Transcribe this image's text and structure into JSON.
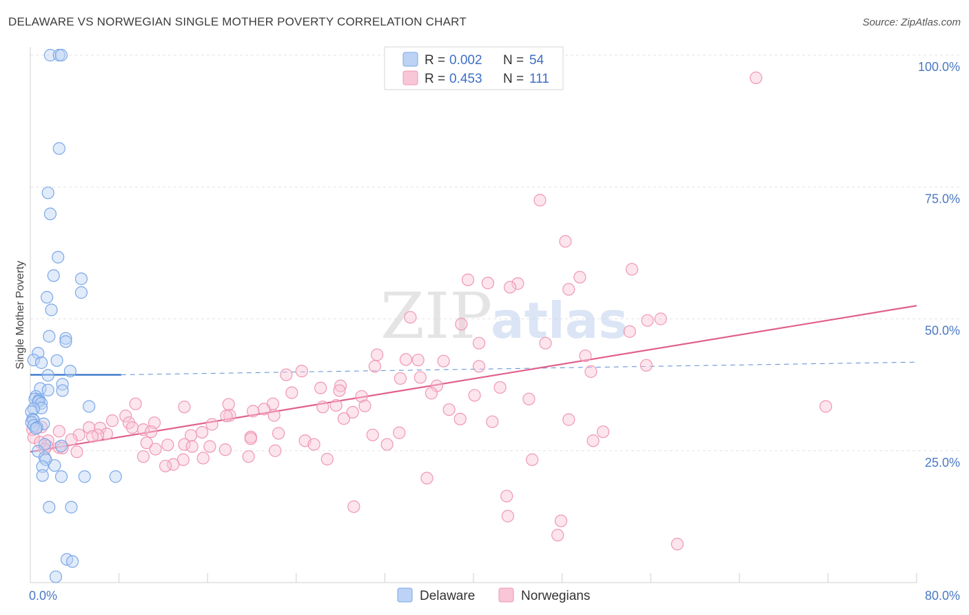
{
  "title": "DELAWARE VS NORWEGIAN SINGLE MOTHER POVERTY CORRELATION CHART",
  "source": "Source: ZipAtlas.com",
  "watermark": {
    "zip": "ZIP",
    "atlas": "atlas"
  },
  "colors": {
    "delaware": "#7aa7e8",
    "delaware_fill": "#bcd3f5",
    "delaware_line": "#2f6fc7",
    "norwegians": "#ef97b3",
    "norwegians_fill": "#f8c6d6",
    "norwegians_line": "#e0608b",
    "grid": "#e3e3e3",
    "axis_text": "#4a78c2"
  },
  "legend": {
    "rows": [
      {
        "r_label": "R = ",
        "r_value": "0.002",
        "n_label": "N = ",
        "n_value": "54"
      },
      {
        "r_label": "R = ",
        "r_value": "0.453",
        "n_label": "N = ",
        "n_value": "111"
      }
    ]
  },
  "chart_data": {
    "type": "scatter",
    "title": "DELAWARE VS NORWEGIAN SINGLE MOTHER POVERTY CORRELATION CHART",
    "xlabel": "",
    "ylabel": "Single Mother Poverty",
    "xlim": [
      0,
      80
    ],
    "ylim": [
      0,
      100
    ],
    "x_ticks": [
      0,
      8,
      16,
      24,
      32,
      40,
      48,
      56,
      64,
      72,
      80
    ],
    "x_tick_labels": [
      {
        "value": 0,
        "label": "0.0%"
      },
      {
        "value": 80,
        "label": "80.0%"
      }
    ],
    "y_ticks": [
      {
        "value": 25,
        "label": "25.0%"
      },
      {
        "value": 50,
        "label": "50.0%"
      },
      {
        "value": 75,
        "label": "75.0%"
      },
      {
        "value": 100,
        "label": "100.0%"
      }
    ],
    "grid": true,
    "legend_position": "top-center",
    "series": [
      {
        "name": "Delaware",
        "r": 0.002,
        "n": 54,
        "trend": {
          "x": [
            0,
            8.2
          ],
          "y": [
            39.4,
            39.4
          ],
          "dashed_to": [
            80,
            41.8
          ]
        },
        "points": [
          [
            1.8,
            100
          ],
          [
            2.6,
            100
          ],
          [
            2.8,
            100
          ],
          [
            2.6,
            82.3
          ],
          [
            1.6,
            73.9
          ],
          [
            1.8,
            69.9
          ],
          [
            2.5,
            61.7
          ],
          [
            2.1,
            58.2
          ],
          [
            4.6,
            57.6
          ],
          [
            4.6,
            55.0
          ],
          [
            1.5,
            54.1
          ],
          [
            1.9,
            51.7
          ],
          [
            1.7,
            46.7
          ],
          [
            3.2,
            46.3
          ],
          [
            3.2,
            45.7
          ],
          [
            0.7,
            43.5
          ],
          [
            0.3,
            42.2
          ],
          [
            2.4,
            42.1
          ],
          [
            1.0,
            41.7
          ],
          [
            3.6,
            40.1
          ],
          [
            1.6,
            39.3
          ],
          [
            2.9,
            37.6
          ],
          [
            0.9,
            36.8
          ],
          [
            1.6,
            36.5
          ],
          [
            2.9,
            36.4
          ],
          [
            0.5,
            35.3
          ],
          [
            0.4,
            34.8
          ],
          [
            0.8,
            34.7
          ],
          [
            0.8,
            34.4
          ],
          [
            0.7,
            34.3
          ],
          [
            1.0,
            34.0
          ],
          [
            5.3,
            33.4
          ],
          [
            1.0,
            33.1
          ],
          [
            0.3,
            33.0
          ],
          [
            0.1,
            32.4
          ],
          [
            0.2,
            31.0
          ],
          [
            0.3,
            30.8
          ],
          [
            0.1,
            30.4
          ],
          [
            1.2,
            30.1
          ],
          [
            0.3,
            29.8
          ],
          [
            0.6,
            29.4
          ],
          [
            0.5,
            29.2
          ],
          [
            1.3,
            26.2
          ],
          [
            2.8,
            25.9
          ],
          [
            0.7,
            24.9
          ],
          [
            1.3,
            23.7
          ],
          [
            1.4,
            23.3
          ],
          [
            1.1,
            22.0
          ],
          [
            2.2,
            22.2
          ],
          [
            1.1,
            20.3
          ],
          [
            2.8,
            20.1
          ],
          [
            4.9,
            20.1
          ],
          [
            7.7,
            20.1
          ],
          [
            1.7,
            14.3
          ],
          [
            3.7,
            14.3
          ],
          [
            3.3,
            4.4
          ],
          [
            3.8,
            4.0
          ],
          [
            2.3,
            1.1
          ]
        ]
      },
      {
        "name": "Norwegians",
        "r": 0.453,
        "n": 111,
        "trend": {
          "x": [
            0,
            80
          ],
          "y": [
            24.8,
            52.5
          ]
        },
        "points": [
          [
            65.5,
            95.7
          ],
          [
            46.0,
            72.5
          ],
          [
            48.3,
            64.7
          ],
          [
            54.3,
            59.4
          ],
          [
            49.6,
            57.9
          ],
          [
            39.5,
            57.4
          ],
          [
            41.3,
            56.8
          ],
          [
            44.0,
            56.7
          ],
          [
            43.3,
            56.0
          ],
          [
            48.6,
            55.6
          ],
          [
            34.3,
            50.3
          ],
          [
            38.9,
            49.0
          ],
          [
            55.7,
            49.7
          ],
          [
            56.9,
            50.0
          ],
          [
            54.1,
            47.6
          ],
          [
            40.5,
            45.4
          ],
          [
            46.5,
            45.4
          ],
          [
            31.3,
            43.2
          ],
          [
            33.9,
            42.3
          ],
          [
            35.0,
            42.2
          ],
          [
            37.3,
            42.0
          ],
          [
            50.1,
            43.0
          ],
          [
            31.1,
            41.0
          ],
          [
            40.5,
            41.0
          ],
          [
            55.6,
            41.2
          ],
          [
            24.5,
            40.1
          ],
          [
            50.6,
            40.0
          ],
          [
            23.1,
            39.4
          ],
          [
            35.2,
            38.9
          ],
          [
            33.4,
            38.7
          ],
          [
            36.7,
            37.3
          ],
          [
            28.0,
            37.3
          ],
          [
            26.2,
            36.9
          ],
          [
            42.4,
            37.0
          ],
          [
            27.9,
            36.4
          ],
          [
            23.6,
            36.0
          ],
          [
            36.2,
            35.9
          ],
          [
            40.1,
            35.5
          ],
          [
            45.0,
            34.8
          ],
          [
            29.9,
            35.3
          ],
          [
            9.5,
            33.9
          ],
          [
            17.9,
            33.8
          ],
          [
            21.9,
            33.9
          ],
          [
            27.6,
            33.6
          ],
          [
            30.2,
            33.5
          ],
          [
            13.9,
            33.3
          ],
          [
            26.4,
            33.3
          ],
          [
            37.8,
            32.8
          ],
          [
            21.1,
            32.9
          ],
          [
            20.1,
            32.5
          ],
          [
            29.1,
            32.3
          ],
          [
            71.8,
            33.4
          ],
          [
            18.0,
            31.7
          ],
          [
            8.6,
            31.6
          ],
          [
            22.0,
            31.7
          ],
          [
            17.7,
            31.6
          ],
          [
            28.3,
            31.1
          ],
          [
            38.8,
            31.0
          ],
          [
            48.6,
            30.9
          ],
          [
            7.4,
            30.7
          ],
          [
            8.9,
            30.3
          ],
          [
            11.2,
            30.3
          ],
          [
            41.7,
            30.5
          ],
          [
            16.4,
            30.0
          ],
          [
            5.3,
            29.4
          ],
          [
            6.3,
            29.3
          ],
          [
            1.0,
            29.5
          ],
          [
            0.2,
            29.0
          ],
          [
            2.6,
            28.7
          ],
          [
            9.2,
            29.4
          ],
          [
            10.2,
            29.0
          ],
          [
            51.7,
            28.6
          ],
          [
            10.9,
            28.6
          ],
          [
            15.5,
            28.5
          ],
          [
            22.4,
            28.3
          ],
          [
            6.9,
            28.2
          ],
          [
            4.4,
            28.0
          ],
          [
            6.1,
            28.0
          ],
          [
            33.3,
            28.4
          ],
          [
            30.9,
            28.0
          ],
          [
            5.6,
            27.7
          ],
          [
            0.3,
            27.5
          ],
          [
            3.7,
            27.1
          ],
          [
            14.5,
            27.9
          ],
          [
            24.8,
            26.9
          ],
          [
            19.9,
            27.6
          ],
          [
            19.9,
            27.3
          ],
          [
            25.6,
            26.2
          ],
          [
            1.6,
            26.9
          ],
          [
            12.4,
            26.1
          ],
          [
            13.9,
            26.2
          ],
          [
            16.2,
            25.8
          ],
          [
            2.6,
            25.6
          ],
          [
            1.5,
            25.9
          ],
          [
            2.9,
            25.5
          ],
          [
            0.9,
            26.6
          ],
          [
            14.6,
            25.8
          ],
          [
            32.2,
            26.2
          ],
          [
            50.8,
            26.9
          ],
          [
            10.5,
            26.5
          ],
          [
            1.3,
            25.3
          ],
          [
            11.3,
            25.3
          ],
          [
            17.6,
            25.2
          ],
          [
            22.1,
            25.0
          ],
          [
            4.2,
            24.8
          ],
          [
            10.2,
            23.9
          ],
          [
            15.6,
            23.6
          ],
          [
            13.8,
            23.3
          ],
          [
            12.9,
            22.4
          ],
          [
            19.7,
            23.9
          ],
          [
            26.8,
            23.4
          ],
          [
            45.3,
            23.3
          ],
          [
            12.2,
            22.1
          ],
          [
            35.8,
            19.8
          ],
          [
            43.0,
            16.4
          ],
          [
            29.2,
            14.4
          ],
          [
            43.1,
            12.6
          ],
          [
            47.9,
            11.7
          ],
          [
            47.6,
            9.0
          ],
          [
            58.4,
            7.3
          ]
        ]
      }
    ]
  },
  "bottom_legend": {
    "items": [
      {
        "label": "Delaware"
      },
      {
        "label": "Norwegians"
      }
    ]
  }
}
